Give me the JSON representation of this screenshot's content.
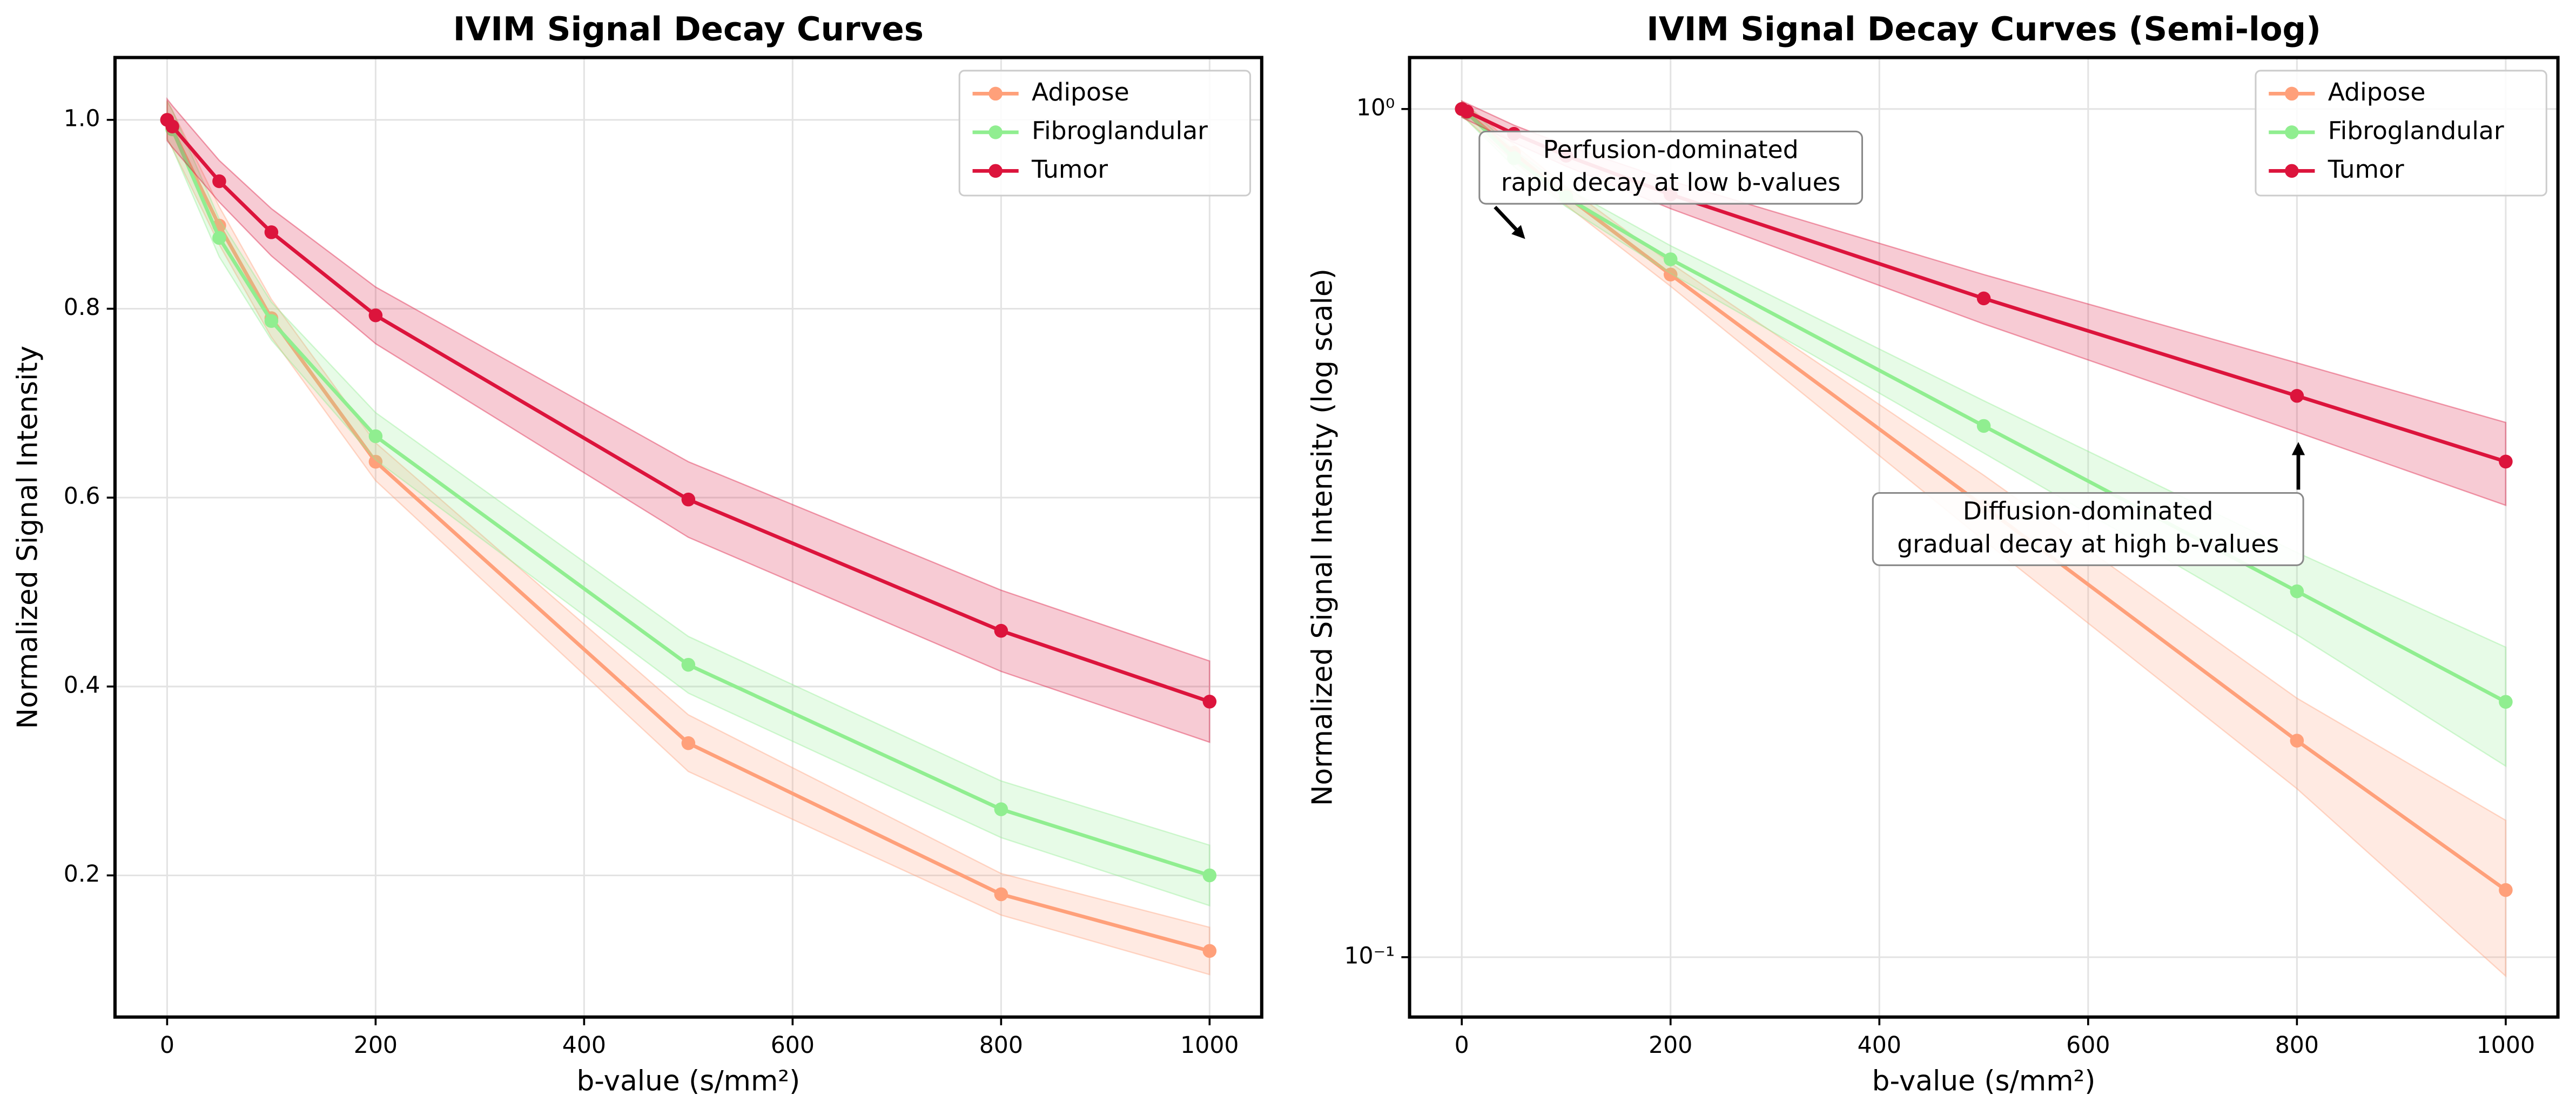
{
  "chart_data": [
    {
      "type": "line",
      "title": "IVIM Signal Decay Curves",
      "xlabel": "b-value (s/mm²)",
      "ylabel": "Normalized Signal Intensity",
      "x": [
        0,
        5,
        50,
        100,
        200,
        500,
        800,
        1000
      ],
      "series": [
        {
          "name": "Adipose",
          "color": "#FFA07A",
          "values": [
            1.0,
            0.99,
            0.888,
            0.79,
            0.638,
            0.34,
            0.18,
            0.12
          ],
          "errors": [
            0.02,
            0.02,
            0.02,
            0.02,
            0.02,
            0.03,
            0.022,
            0.025
          ]
        },
        {
          "name": "Fibroglandular",
          "color": "#90EE90",
          "values": [
            1.0,
            0.99,
            0.875,
            0.787,
            0.665,
            0.423,
            0.27,
            0.2
          ],
          "errors": [
            0.02,
            0.02,
            0.02,
            0.02,
            0.025,
            0.03,
            0.03,
            0.032
          ]
        },
        {
          "name": "Tumor",
          "color": "#DC143C",
          "values": [
            1.0,
            0.993,
            0.935,
            0.881,
            0.793,
            0.598,
            0.459,
            0.384
          ],
          "errors": [
            0.022,
            0.022,
            0.022,
            0.025,
            0.03,
            0.04,
            0.043,
            0.043
          ]
        }
      ],
      "xlim": [
        -50,
        1050
      ],
      "ylim": [
        0.05,
        1.066
      ],
      "xticks": [
        0,
        200,
        400,
        600,
        800,
        1000
      ],
      "yticks": [
        0.2,
        0.4,
        0.6,
        0.8,
        {
          "value": 1.0,
          "label": "1.0"
        }
      ],
      "grid": true,
      "legend": "upper right"
    },
    {
      "type": "line",
      "title": "IVIM Signal Decay Curves (Semi-log)",
      "xlabel": "b-value (s/mm²)",
      "ylabel": "Normalized Signal Intensity (log scale)",
      "x": [
        0,
        5,
        50,
        100,
        200,
        500,
        800,
        1000
      ],
      "series": [
        {
          "name": "Adipose",
          "color": "#FFA07A",
          "values": [
            1.0,
            0.99,
            0.888,
            0.79,
            0.638,
            0.34,
            0.18,
            0.12
          ],
          "errors": [
            0.02,
            0.02,
            0.02,
            0.02,
            0.02,
            0.03,
            0.022,
            0.025
          ]
        },
        {
          "name": "Fibroglandular",
          "color": "#90EE90",
          "values": [
            1.0,
            0.99,
            0.875,
            0.787,
            0.665,
            0.423,
            0.27,
            0.2
          ],
          "errors": [
            0.02,
            0.02,
            0.02,
            0.02,
            0.025,
            0.03,
            0.03,
            0.032
          ]
        },
        {
          "name": "Tumor",
          "color": "#DC143C",
          "values": [
            1.0,
            0.993,
            0.935,
            0.881,
            0.793,
            0.598,
            0.459,
            0.384
          ],
          "errors": [
            0.022,
            0.022,
            0.022,
            0.025,
            0.03,
            0.04,
            0.043,
            0.043
          ]
        }
      ],
      "xlim": [
        -50,
        1050
      ],
      "ylim": [
        0.085,
        1.15
      ],
      "yscale": "log",
      "xticks": [
        0,
        200,
        400,
        600,
        800,
        1000
      ],
      "yticks": [
        {
          "value": 0.1,
          "label": "10⁻¹"
        },
        {
          "value": 1,
          "label": "10⁰"
        }
      ],
      "grid": true,
      "legend": "upper right",
      "annotations": [
        {
          "text": [
            "Perfusion-dominated",
            "rapid decay at low b-values"
          ]
        },
        {
          "text": [
            "Diffusion-dominated",
            "gradual decay at high b-values"
          ]
        }
      ]
    }
  ]
}
